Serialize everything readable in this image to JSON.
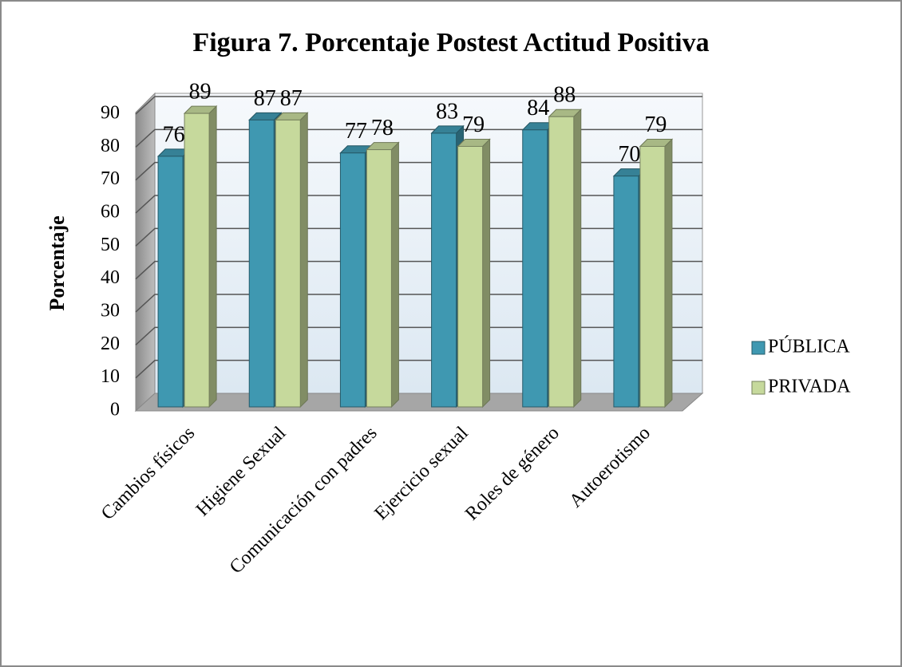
{
  "chart_data": {
    "type": "bar3d",
    "title": "Figura 7. Porcentaje Postest Actitud Positiva",
    "y_label": "Porcentaje",
    "categories": [
      "Cambios físicos",
      "Higiene Sexual",
      "Comunicación con padres",
      "Ejercicio sexual",
      "Roles de género",
      "Autoerotismo"
    ],
    "series": [
      {
        "name": "PÚBLICA",
        "color": "#3f98b1",
        "values": [
          76,
          87,
          77,
          83,
          84,
          70
        ]
      },
      {
        "name": "PRIVADA",
        "color": "#c6d99c",
        "values": [
          89,
          87,
          78,
          79,
          88,
          79
        ]
      }
    ],
    "ylim": [
      0,
      90
    ],
    "yticks": [
      0,
      10,
      20,
      30,
      40,
      50,
      60,
      70,
      80,
      90
    ],
    "grid": true,
    "legend": "right"
  }
}
